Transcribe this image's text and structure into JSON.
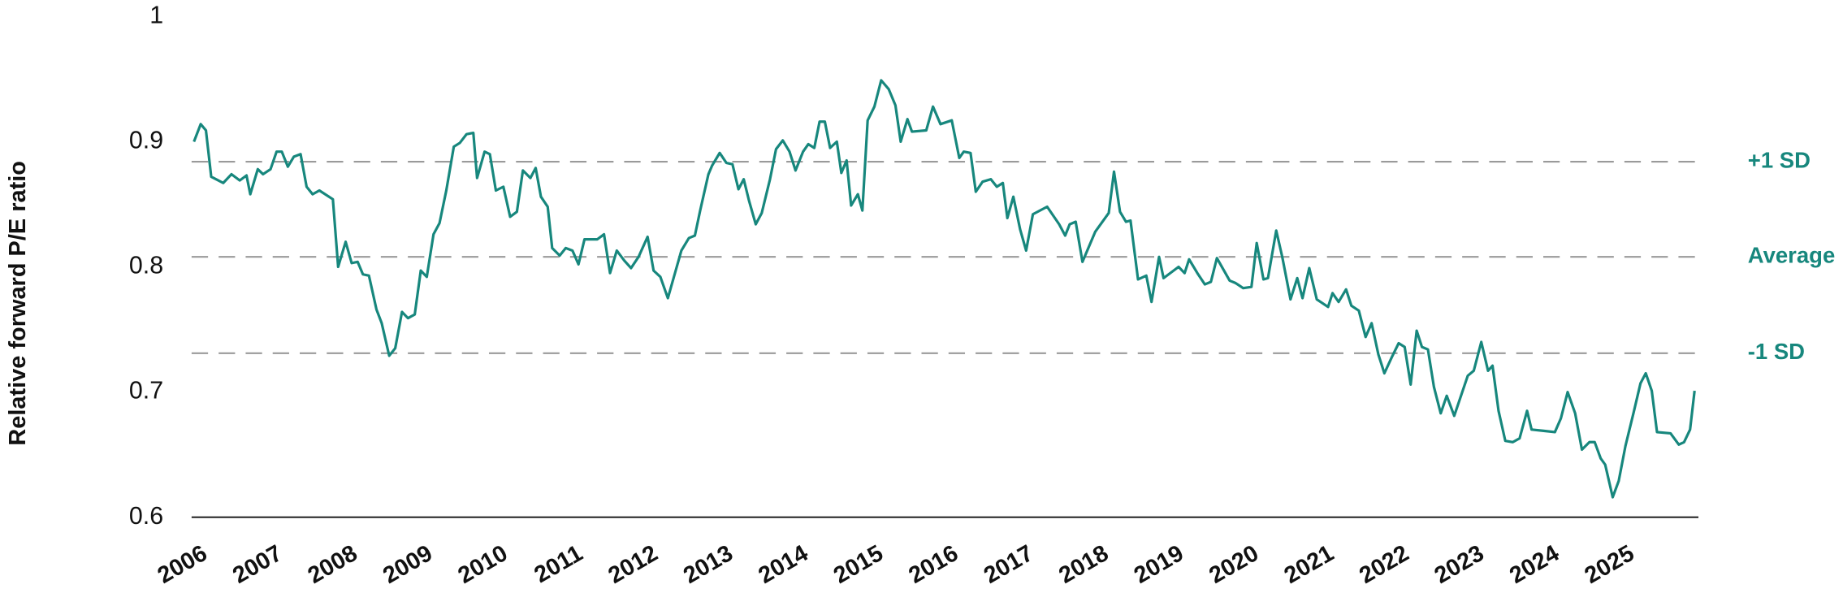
{
  "chart_data": {
    "type": "line",
    "y_label": "Relative forward P/E ratio",
    "color": "#17877d",
    "xlim": [
      2006,
      2026
    ],
    "xticks": [
      2006,
      2007,
      2008,
      2009,
      2010,
      2011,
      2012,
      2013,
      2014,
      2015,
      2016,
      2017,
      2018,
      2019,
      2020,
      2021,
      2022,
      2023,
      2024,
      2025
    ],
    "ylim": [
      0.6,
      1
    ],
    "yticks": [
      0.6,
      0.7,
      0.8,
      0.9,
      1
    ],
    "grid": false,
    "reference_lines": [
      {
        "label": "+1 SD",
        "value": 0.884
      },
      {
        "label": "Average",
        "value": 0.808
      },
      {
        "label": "-1 SD",
        "value": 0.731
      }
    ],
    "x": [
      2006.0,
      2006.09,
      2006.16,
      2006.23,
      2006.39,
      2006.5,
      2006.61,
      2006.7,
      2006.75,
      2006.85,
      2006.92,
      2007.02,
      2007.1,
      2007.17,
      2007.25,
      2007.33,
      2007.42,
      2007.5,
      2007.58,
      2007.67,
      2007.85,
      2007.92,
      2008.02,
      2008.1,
      2008.18,
      2008.25,
      2008.33,
      2008.43,
      2008.5,
      2008.6,
      2008.68,
      2008.77,
      2008.85,
      2008.94,
      2009.02,
      2009.1,
      2009.19,
      2009.27,
      2009.36,
      2009.46,
      2009.54,
      2009.63,
      2009.72,
      2009.77,
      2009.87,
      2009.94,
      2010.02,
      2010.12,
      2010.21,
      2010.3,
      2010.38,
      2010.48,
      2010.55,
      2010.62,
      2010.71,
      2010.77,
      2010.87,
      2010.95,
      2011.04,
      2011.12,
      2011.2,
      2011.37,
      2011.46,
      2011.54,
      2011.63,
      2011.73,
      2011.82,
      2011.92,
      2012.04,
      2012.12,
      2012.21,
      2012.31,
      2012.4,
      2012.49,
      2012.59,
      2012.67,
      2012.74,
      2012.85,
      2012.9,
      2013.0,
      2013.09,
      2013.17,
      2013.25,
      2013.32,
      2013.39,
      2013.48,
      2013.56,
      2013.67,
      2013.75,
      2013.84,
      2013.93,
      2014.01,
      2014.11,
      2014.18,
      2014.26,
      2014.33,
      2014.4,
      2014.47,
      2014.56,
      2014.62,
      2014.69,
      2014.75,
      2014.84,
      2014.9,
      2014.97,
      2015.06,
      2015.15,
      2015.25,
      2015.34,
      2015.41,
      2015.5,
      2015.56,
      2015.75,
      2015.84,
      2015.94,
      2016.09,
      2016.19,
      2016.25,
      2016.34,
      2016.41,
      2016.5,
      2016.61,
      2016.69,
      2016.77,
      2016.83,
      2016.91,
      2017.0,
      2017.08,
      2017.17,
      2017.36,
      2017.52,
      2017.6,
      2017.66,
      2017.74,
      2017.83,
      2018.0,
      2018.18,
      2018.25,
      2018.33,
      2018.41,
      2018.47,
      2018.57,
      2018.68,
      2018.75,
      2018.85,
      2018.91,
      2019.11,
      2019.19,
      2019.25,
      2019.36,
      2019.46,
      2019.54,
      2019.62,
      2019.79,
      2019.87,
      2019.97,
      2020.08,
      2020.15,
      2020.24,
      2020.3,
      2020.41,
      2020.49,
      2020.6,
      2020.69,
      2020.76,
      2020.85,
      2020.95,
      2021.1,
      2021.16,
      2021.24,
      2021.34,
      2021.41,
      2021.51,
      2021.6,
      2021.68,
      2021.77,
      2021.85,
      2021.95,
      2022.04,
      2022.12,
      2022.2,
      2022.28,
      2022.35,
      2022.43,
      2022.51,
      2022.6,
      2022.68,
      2022.78,
      2022.87,
      2022.96,
      2023.04,
      2023.14,
      2023.23,
      2023.29,
      2023.37,
      2023.46,
      2023.56,
      2023.65,
      2023.75,
      2023.81,
      2023.97,
      2024.12,
      2024.2,
      2024.29,
      2024.39,
      2024.48,
      2024.58,
      2024.65,
      2024.73,
      2024.79,
      2024.89,
      2024.97,
      2025.06,
      2025.17,
      2025.26,
      2025.33,
      2025.41,
      2025.48,
      2025.66,
      2025.77,
      2025.84,
      2025.92,
      2025.98
    ],
    "values": [
      0.9,
      0.914,
      0.909,
      0.872,
      0.867,
      0.874,
      0.869,
      0.873,
      0.858,
      0.878,
      0.874,
      0.878,
      0.892,
      0.892,
      0.88,
      0.888,
      0.89,
      0.864,
      0.858,
      0.861,
      0.854,
      0.8,
      0.82,
      0.803,
      0.804,
      0.794,
      0.793,
      0.766,
      0.755,
      0.729,
      0.735,
      0.764,
      0.759,
      0.762,
      0.797,
      0.792,
      0.826,
      0.835,
      0.861,
      0.896,
      0.899,
      0.906,
      0.907,
      0.871,
      0.892,
      0.89,
      0.861,
      0.864,
      0.84,
      0.844,
      0.877,
      0.871,
      0.879,
      0.856,
      0.848,
      0.815,
      0.809,
      0.815,
      0.813,
      0.802,
      0.822,
      0.822,
      0.826,
      0.795,
      0.813,
      0.805,
      0.799,
      0.808,
      0.824,
      0.797,
      0.792,
      0.775,
      0.794,
      0.813,
      0.823,
      0.825,
      0.845,
      0.874,
      0.881,
      0.891,
      0.883,
      0.882,
      0.862,
      0.87,
      0.853,
      0.834,
      0.843,
      0.87,
      0.894,
      0.901,
      0.892,
      0.877,
      0.892,
      0.898,
      0.895,
      0.916,
      0.916,
      0.895,
      0.9,
      0.875,
      0.885,
      0.849,
      0.858,
      0.845,
      0.917,
      0.928,
      0.949,
      0.942,
      0.929,
      0.9,
      0.918,
      0.908,
      0.909,
      0.928,
      0.914,
      0.917,
      0.887,
      0.892,
      0.891,
      0.86,
      0.868,
      0.87,
      0.864,
      0.867,
      0.839,
      0.856,
      0.83,
      0.813,
      0.842,
      0.848,
      0.834,
      0.825,
      0.834,
      0.836,
      0.804,
      0.828,
      0.843,
      0.876,
      0.844,
      0.836,
      0.837,
      0.79,
      0.793,
      0.772,
      0.808,
      0.791,
      0.8,
      0.795,
      0.806,
      0.795,
      0.786,
      0.788,
      0.807,
      0.789,
      0.787,
      0.783,
      0.784,
      0.819,
      0.79,
      0.791,
      0.829,
      0.808,
      0.774,
      0.791,
      0.775,
      0.799,
      0.774,
      0.768,
      0.779,
      0.772,
      0.782,
      0.769,
      0.765,
      0.744,
      0.755,
      0.73,
      0.715,
      0.728,
      0.739,
      0.736,
      0.706,
      0.749,
      0.736,
      0.734,
      0.704,
      0.683,
      0.697,
      0.681,
      0.697,
      0.713,
      0.717,
      0.74,
      0.717,
      0.721,
      0.685,
      0.661,
      0.66,
      0.663,
      0.685,
      0.67,
      0.669,
      0.668,
      0.679,
      0.7,
      0.683,
      0.654,
      0.66,
      0.66,
      0.647,
      0.642,
      0.616,
      0.629,
      0.657,
      0.684,
      0.707,
      0.715,
      0.701,
      0.668,
      0.667,
      0.658,
      0.66,
      0.67,
      0.701
    ]
  }
}
